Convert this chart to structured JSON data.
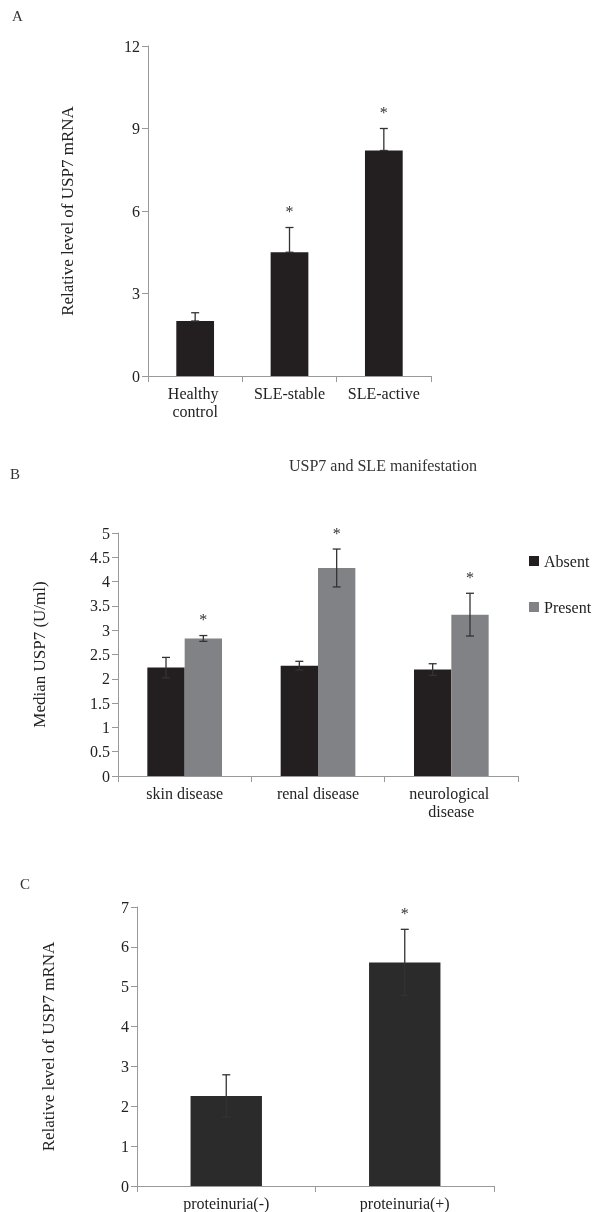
{
  "chart_data": [
    {
      "type": "bar",
      "annotations": [
        "A"
      ],
      "ylabel": "Relative level of USP7 mRNA",
      "categories": [
        "Healthy control",
        "SLE-stable",
        "SLE-active"
      ],
      "series": [
        {
          "color": "#231f20",
          "values": [
            2.0,
            4.5,
            8.2
          ],
          "errors": [
            [
              2.0,
              2.3
            ],
            [
              4.5,
              5.4
            ],
            [
              8.2,
              9.0
            ]
          ],
          "value_labels": [
            null,
            "*",
            "*"
          ]
        }
      ],
      "ylim": [
        0,
        12
      ],
      "yticks": [
        0,
        3,
        6,
        9,
        12
      ],
      "grid": false,
      "legend": false
    },
    {
      "type": "bar",
      "annotations": [
        "B"
      ],
      "title": "USP7 and SLE manifestation",
      "ylabel": "Median USP7 (U/ml)",
      "categories": [
        "skin disease",
        "renal disease",
        "neurological disease"
      ],
      "series": [
        {
          "name": "Absent",
          "color": "#231f20",
          "values": [
            2.23,
            2.27,
            2.19
          ],
          "errors": [
            0.21,
            0.09,
            0.12
          ]
        },
        {
          "name": "Present",
          "color": "#808285",
          "values": [
            2.83,
            4.28,
            3.32
          ],
          "errors": [
            0.06,
            0.39,
            0.44
          ],
          "value_labels": [
            "*",
            "*",
            "*"
          ]
        }
      ],
      "ylim": [
        0,
        5
      ],
      "yticks": [
        0,
        0.5,
        1,
        1.5,
        2,
        2.5,
        3,
        3.5,
        4,
        4.5,
        5
      ],
      "grid": false,
      "legend": "right"
    },
    {
      "type": "bar",
      "annotations": [
        "C"
      ],
      "ylabel": "Relative level of USP7 mRNA",
      "categories": [
        "proteinuria(-)",
        "proteinuria(+)"
      ],
      "series": [
        {
          "color": "#2b2b2b",
          "values": [
            2.26,
            5.61
          ],
          "errors": [
            0.53,
            0.83
          ],
          "value_labels": [
            null,
            "*"
          ]
        }
      ],
      "ylim": [
        0,
        7
      ],
      "yticks": [
        0,
        1,
        2,
        3,
        4,
        5,
        6,
        7
      ],
      "grid": false,
      "legend": false
    }
  ]
}
